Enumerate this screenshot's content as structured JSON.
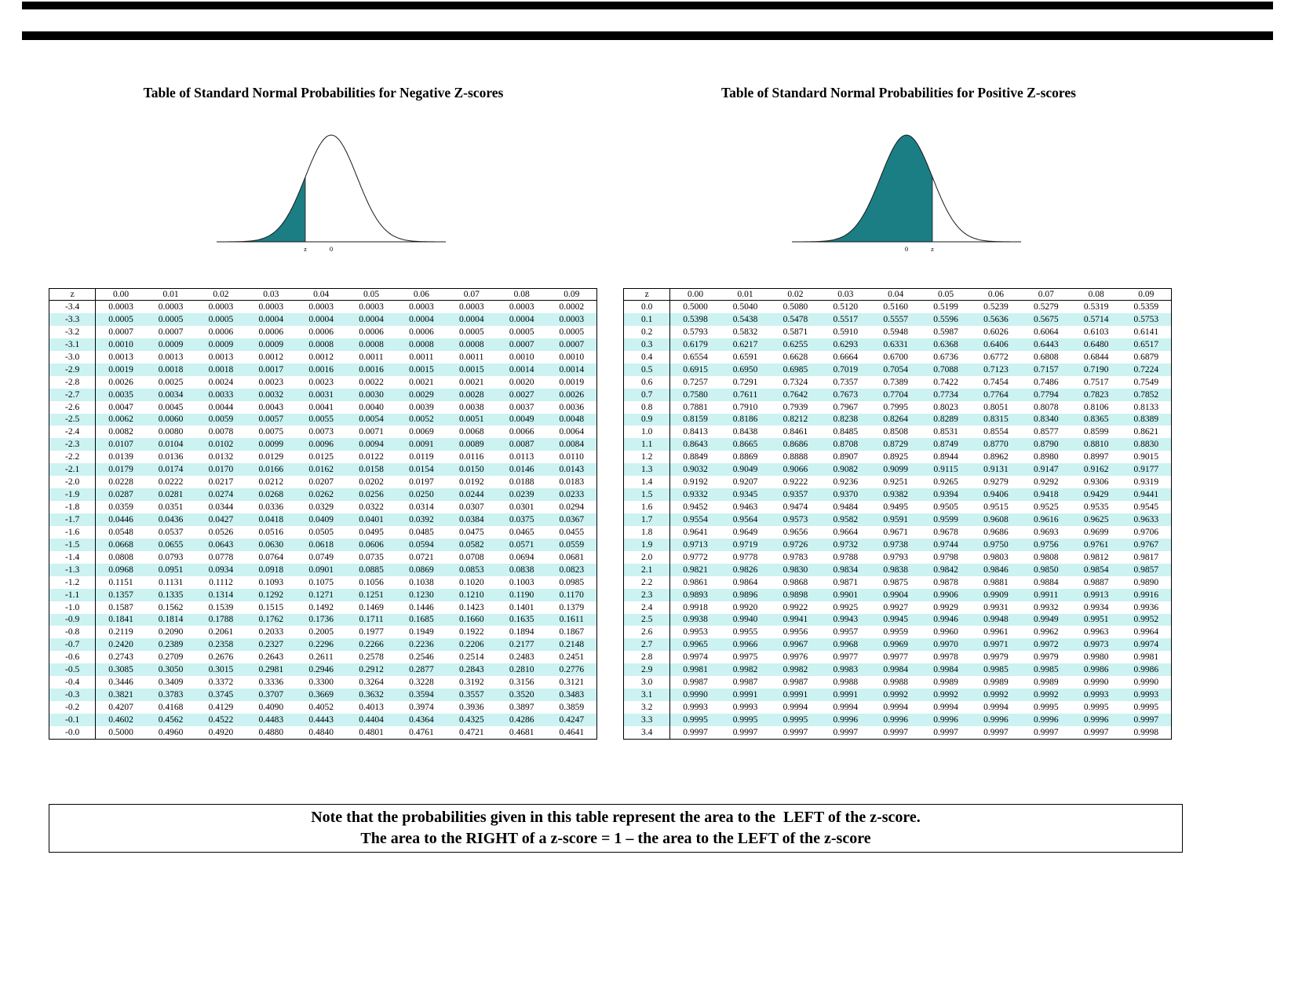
{
  "page": {
    "title_negative": "Table of Standard Normal Probabilities for Negative Z-scores",
    "title_positive": "Table of Standard Normal Probabilities for Positive Z-scores",
    "note_line1": "Note that the probabilities given in this table represent the area to the  LEFT of the z-score.",
    "note_line2": "The area to the RIGHT of a z-score = 1 – the area to the LEFT of the z-score",
    "colors": {
      "shade": "#1b7e85",
      "row_alt": "#ccf2f2",
      "bar": "#000000"
    }
  },
  "charts": {
    "negative": {
      "type": "area",
      "description": "standard normal curve, left tail shaded to z",
      "shadeTo": -1,
      "labels": [
        {
          "z": -1,
          "t": "z"
        },
        {
          "z": 0,
          "t": "0"
        }
      ]
    },
    "positive": {
      "type": "area",
      "description": "standard normal curve, area shaded from left up to z",
      "shadeTo": 1,
      "labels": [
        {
          "z": 0,
          "t": "0"
        },
        {
          "z": 1,
          "t": "z"
        }
      ]
    }
  },
  "tables": {
    "negative": {
      "header": [
        "z",
        "0.00",
        "0.01",
        "0.02",
        "0.03",
        "0.04",
        "0.05",
        "0.06",
        "0.07",
        "0.08",
        "0.09"
      ],
      "rows": [
        [
          "-3.4",
          "0.0003",
          "0.0003",
          "0.0003",
          "0.0003",
          "0.0003",
          "0.0003",
          "0.0003",
          "0.0003",
          "0.0003",
          "0.0002"
        ],
        [
          "-3.3",
          "0.0005",
          "0.0005",
          "0.0005",
          "0.0004",
          "0.0004",
          "0.0004",
          "0.0004",
          "0.0004",
          "0.0004",
          "0.0003"
        ],
        [
          "-3.2",
          "0.0007",
          "0.0007",
          "0.0006",
          "0.0006",
          "0.0006",
          "0.0006",
          "0.0006",
          "0.0005",
          "0.0005",
          "0.0005"
        ],
        [
          "-3.1",
          "0.0010",
          "0.0009",
          "0.0009",
          "0.0009",
          "0.0008",
          "0.0008",
          "0.0008",
          "0.0008",
          "0.0007",
          "0.0007"
        ],
        [
          "-3.0",
          "0.0013",
          "0.0013",
          "0.0013",
          "0.0012",
          "0.0012",
          "0.0011",
          "0.0011",
          "0.0011",
          "0.0010",
          "0.0010"
        ],
        [
          "-2.9",
          "0.0019",
          "0.0018",
          "0.0018",
          "0.0017",
          "0.0016",
          "0.0016",
          "0.0015",
          "0.0015",
          "0.0014",
          "0.0014"
        ],
        [
          "-2.8",
          "0.0026",
          "0.0025",
          "0.0024",
          "0.0023",
          "0.0023",
          "0.0022",
          "0.0021",
          "0.0021",
          "0.0020",
          "0.0019"
        ],
        [
          "-2.7",
          "0.0035",
          "0.0034",
          "0.0033",
          "0.0032",
          "0.0031",
          "0.0030",
          "0.0029",
          "0.0028",
          "0.0027",
          "0.0026"
        ],
        [
          "-2.6",
          "0.0047",
          "0.0045",
          "0.0044",
          "0.0043",
          "0.0041",
          "0.0040",
          "0.0039",
          "0.0038",
          "0.0037",
          "0.0036"
        ],
        [
          "-2.5",
          "0.0062",
          "0.0060",
          "0.0059",
          "0.0057",
          "0.0055",
          "0.0054",
          "0.0052",
          "0.0051",
          "0.0049",
          "0.0048"
        ],
        [
          "-2.4",
          "0.0082",
          "0.0080",
          "0.0078",
          "0.0075",
          "0.0073",
          "0.0071",
          "0.0069",
          "0.0068",
          "0.0066",
          "0.0064"
        ],
        [
          "-2.3",
          "0.0107",
          "0.0104",
          "0.0102",
          "0.0099",
          "0.0096",
          "0.0094",
          "0.0091",
          "0.0089",
          "0.0087",
          "0.0084"
        ],
        [
          "-2.2",
          "0.0139",
          "0.0136",
          "0.0132",
          "0.0129",
          "0.0125",
          "0.0122",
          "0.0119",
          "0.0116",
          "0.0113",
          "0.0110"
        ],
        [
          "-2.1",
          "0.0179",
          "0.0174",
          "0.0170",
          "0.0166",
          "0.0162",
          "0.0158",
          "0.0154",
          "0.0150",
          "0.0146",
          "0.0143"
        ],
        [
          "-2.0",
          "0.0228",
          "0.0222",
          "0.0217",
          "0.0212",
          "0.0207",
          "0.0202",
          "0.0197",
          "0.0192",
          "0.0188",
          "0.0183"
        ],
        [
          "-1.9",
          "0.0287",
          "0.0281",
          "0.0274",
          "0.0268",
          "0.0262",
          "0.0256",
          "0.0250",
          "0.0244",
          "0.0239",
          "0.0233"
        ],
        [
          "-1.8",
          "0.0359",
          "0.0351",
          "0.0344",
          "0.0336",
          "0.0329",
          "0.0322",
          "0.0314",
          "0.0307",
          "0.0301",
          "0.0294"
        ],
        [
          "-1.7",
          "0.0446",
          "0.0436",
          "0.0427",
          "0.0418",
          "0.0409",
          "0.0401",
          "0.0392",
          "0.0384",
          "0.0375",
          "0.0367"
        ],
        [
          "-1.6",
          "0.0548",
          "0.0537",
          "0.0526",
          "0.0516",
          "0.0505",
          "0.0495",
          "0.0485",
          "0.0475",
          "0.0465",
          "0.0455"
        ],
        [
          "-1.5",
          "0.0668",
          "0.0655",
          "0.0643",
          "0.0630",
          "0.0618",
          "0.0606",
          "0.0594",
          "0.0582",
          "0.0571",
          "0.0559"
        ],
        [
          "-1.4",
          "0.0808",
          "0.0793",
          "0.0778",
          "0.0764",
          "0.0749",
          "0.0735",
          "0.0721",
          "0.0708",
          "0.0694",
          "0.0681"
        ],
        [
          "-1.3",
          "0.0968",
          "0.0951",
          "0.0934",
          "0.0918",
          "0.0901",
          "0.0885",
          "0.0869",
          "0.0853",
          "0.0838",
          "0.0823"
        ],
        [
          "-1.2",
          "0.1151",
          "0.1131",
          "0.1112",
          "0.1093",
          "0.1075",
          "0.1056",
          "0.1038",
          "0.1020",
          "0.1003",
          "0.0985"
        ],
        [
          "-1.1",
          "0.1357",
          "0.1335",
          "0.1314",
          "0.1292",
          "0.1271",
          "0.1251",
          "0.1230",
          "0.1210",
          "0.1190",
          "0.1170"
        ],
        [
          "-1.0",
          "0.1587",
          "0.1562",
          "0.1539",
          "0.1515",
          "0.1492",
          "0.1469",
          "0.1446",
          "0.1423",
          "0.1401",
          "0.1379"
        ],
        [
          "-0.9",
          "0.1841",
          "0.1814",
          "0.1788",
          "0.1762",
          "0.1736",
          "0.1711",
          "0.1685",
          "0.1660",
          "0.1635",
          "0.1611"
        ],
        [
          "-0.8",
          "0.2119",
          "0.2090",
          "0.2061",
          "0.2033",
          "0.2005",
          "0.1977",
          "0.1949",
          "0.1922",
          "0.1894",
          "0.1867"
        ],
        [
          "-0.7",
          "0.2420",
          "0.2389",
          "0.2358",
          "0.2327",
          "0.2296",
          "0.2266",
          "0.2236",
          "0.2206",
          "0.2177",
          "0.2148"
        ],
        [
          "-0.6",
          "0.2743",
          "0.2709",
          "0.2676",
          "0.2643",
          "0.2611",
          "0.2578",
          "0.2546",
          "0.2514",
          "0.2483",
          "0.2451"
        ],
        [
          "-0.5",
          "0.3085",
          "0.3050",
          "0.3015",
          "0.2981",
          "0.2946",
          "0.2912",
          "0.2877",
          "0.2843",
          "0.2810",
          "0.2776"
        ],
        [
          "-0.4",
          "0.3446",
          "0.3409",
          "0.3372",
          "0.3336",
          "0.3300",
          "0.3264",
          "0.3228",
          "0.3192",
          "0.3156",
          "0.3121"
        ],
        [
          "-0.3",
          "0.3821",
          "0.3783",
          "0.3745",
          "0.3707",
          "0.3669",
          "0.3632",
          "0.3594",
          "0.3557",
          "0.3520",
          "0.3483"
        ],
        [
          "-0.2",
          "0.4207",
          "0.4168",
          "0.4129",
          "0.4090",
          "0.4052",
          "0.4013",
          "0.3974",
          "0.3936",
          "0.3897",
          "0.3859"
        ],
        [
          "-0.1",
          "0.4602",
          "0.4562",
          "0.4522",
          "0.4483",
          "0.4443",
          "0.4404",
          "0.4364",
          "0.4325",
          "0.4286",
          "0.4247"
        ],
        [
          "-0.0",
          "0.5000",
          "0.4960",
          "0.4920",
          "0.4880",
          "0.4840",
          "0.4801",
          "0.4761",
          "0.4721",
          "0.4681",
          "0.4641"
        ]
      ]
    },
    "positive": {
      "header": [
        "z",
        "0.00",
        "0.01",
        "0.02",
        "0.03",
        "0.04",
        "0.05",
        "0.06",
        "0.07",
        "0.08",
        "0.09"
      ],
      "rows": [
        [
          "0.0",
          "0.5000",
          "0.5040",
          "0.5080",
          "0.5120",
          "0.5160",
          "0.5199",
          "0.5239",
          "0.5279",
          "0.5319",
          "0.5359"
        ],
        [
          "0.1",
          "0.5398",
          "0.5438",
          "0.5478",
          "0.5517",
          "0.5557",
          "0.5596",
          "0.5636",
          "0.5675",
          "0.5714",
          "0.5753"
        ],
        [
          "0.2",
          "0.5793",
          "0.5832",
          "0.5871",
          "0.5910",
          "0.5948",
          "0.5987",
          "0.6026",
          "0.6064",
          "0.6103",
          "0.6141"
        ],
        [
          "0.3",
          "0.6179",
          "0.6217",
          "0.6255",
          "0.6293",
          "0.6331",
          "0.6368",
          "0.6406",
          "0.6443",
          "0.6480",
          "0.6517"
        ],
        [
          "0.4",
          "0.6554",
          "0.6591",
          "0.6628",
          "0.6664",
          "0.6700",
          "0.6736",
          "0.6772",
          "0.6808",
          "0.6844",
          "0.6879"
        ],
        [
          "0.5",
          "0.6915",
          "0.6950",
          "0.6985",
          "0.7019",
          "0.7054",
          "0.7088",
          "0.7123",
          "0.7157",
          "0.7190",
          "0.7224"
        ],
        [
          "0.6",
          "0.7257",
          "0.7291",
          "0.7324",
          "0.7357",
          "0.7389",
          "0.7422",
          "0.7454",
          "0.7486",
          "0.7517",
          "0.7549"
        ],
        [
          "0.7",
          "0.7580",
          "0.7611",
          "0.7642",
          "0.7673",
          "0.7704",
          "0.7734",
          "0.7764",
          "0.7794",
          "0.7823",
          "0.7852"
        ],
        [
          "0.8",
          "0.7881",
          "0.7910",
          "0.7939",
          "0.7967",
          "0.7995",
          "0.8023",
          "0.8051",
          "0.8078",
          "0.8106",
          "0.8133"
        ],
        [
          "0.9",
          "0.8159",
          "0.8186",
          "0.8212",
          "0.8238",
          "0.8264",
          "0.8289",
          "0.8315",
          "0.8340",
          "0.8365",
          "0.8389"
        ],
        [
          "1.0",
          "0.8413",
          "0.8438",
          "0.8461",
          "0.8485",
          "0.8508",
          "0.8531",
          "0.8554",
          "0.8577",
          "0.8599",
          "0.8621"
        ],
        [
          "1.1",
          "0.8643",
          "0.8665",
          "0.8686",
          "0.8708",
          "0.8729",
          "0.8749",
          "0.8770",
          "0.8790",
          "0.8810",
          "0.8830"
        ],
        [
          "1.2",
          "0.8849",
          "0.8869",
          "0.8888",
          "0.8907",
          "0.8925",
          "0.8944",
          "0.8962",
          "0.8980",
          "0.8997",
          "0.9015"
        ],
        [
          "1.3",
          "0.9032",
          "0.9049",
          "0.9066",
          "0.9082",
          "0.9099",
          "0.9115",
          "0.9131",
          "0.9147",
          "0.9162",
          "0.9177"
        ],
        [
          "1.4",
          "0.9192",
          "0.9207",
          "0.9222",
          "0.9236",
          "0.9251",
          "0.9265",
          "0.9279",
          "0.9292",
          "0.9306",
          "0.9319"
        ],
        [
          "1.5",
          "0.9332",
          "0.9345",
          "0.9357",
          "0.9370",
          "0.9382",
          "0.9394",
          "0.9406",
          "0.9418",
          "0.9429",
          "0.9441"
        ],
        [
          "1.6",
          "0.9452",
          "0.9463",
          "0.9474",
          "0.9484",
          "0.9495",
          "0.9505",
          "0.9515",
          "0.9525",
          "0.9535",
          "0.9545"
        ],
        [
          "1.7",
          "0.9554",
          "0.9564",
          "0.9573",
          "0.9582",
          "0.9591",
          "0.9599",
          "0.9608",
          "0.9616",
          "0.9625",
          "0.9633"
        ],
        [
          "1.8",
          "0.9641",
          "0.9649",
          "0.9656",
          "0.9664",
          "0.9671",
          "0.9678",
          "0.9686",
          "0.9693",
          "0.9699",
          "0.9706"
        ],
        [
          "1.9",
          "0.9713",
          "0.9719",
          "0.9726",
          "0.9732",
          "0.9738",
          "0.9744",
          "0.9750",
          "0.9756",
          "0.9761",
          "0.9767"
        ],
        [
          "2.0",
          "0.9772",
          "0.9778",
          "0.9783",
          "0.9788",
          "0.9793",
          "0.9798",
          "0.9803",
          "0.9808",
          "0.9812",
          "0.9817"
        ],
        [
          "2.1",
          "0.9821",
          "0.9826",
          "0.9830",
          "0.9834",
          "0.9838",
          "0.9842",
          "0.9846",
          "0.9850",
          "0.9854",
          "0.9857"
        ],
        [
          "2.2",
          "0.9861",
          "0.9864",
          "0.9868",
          "0.9871",
          "0.9875",
          "0.9878",
          "0.9881",
          "0.9884",
          "0.9887",
          "0.9890"
        ],
        [
          "2.3",
          "0.9893",
          "0.9896",
          "0.9898",
          "0.9901",
          "0.9904",
          "0.9906",
          "0.9909",
          "0.9911",
          "0.9913",
          "0.9916"
        ],
        [
          "2.4",
          "0.9918",
          "0.9920",
          "0.9922",
          "0.9925",
          "0.9927",
          "0.9929",
          "0.9931",
          "0.9932",
          "0.9934",
          "0.9936"
        ],
        [
          "2.5",
          "0.9938",
          "0.9940",
          "0.9941",
          "0.9943",
          "0.9945",
          "0.9946",
          "0.9948",
          "0.9949",
          "0.9951",
          "0.9952"
        ],
        [
          "2.6",
          "0.9953",
          "0.9955",
          "0.9956",
          "0.9957",
          "0.9959",
          "0.9960",
          "0.9961",
          "0.9962",
          "0.9963",
          "0.9964"
        ],
        [
          "2.7",
          "0.9965",
          "0.9966",
          "0.9967",
          "0.9968",
          "0.9969",
          "0.9970",
          "0.9971",
          "0.9972",
          "0.9973",
          "0.9974"
        ],
        [
          "2.8",
          "0.9974",
          "0.9975",
          "0.9976",
          "0.9977",
          "0.9977",
          "0.9978",
          "0.9979",
          "0.9979",
          "0.9980",
          "0.9981"
        ],
        [
          "2.9",
          "0.9981",
          "0.9982",
          "0.9982",
          "0.9983",
          "0.9984",
          "0.9984",
          "0.9985",
          "0.9985",
          "0.9986",
          "0.9986"
        ],
        [
          "3.0",
          "0.9987",
          "0.9987",
          "0.9987",
          "0.9988",
          "0.9988",
          "0.9989",
          "0.9989",
          "0.9989",
          "0.9990",
          "0.9990"
        ],
        [
          "3.1",
          "0.9990",
          "0.9991",
          "0.9991",
          "0.9991",
          "0.9992",
          "0.9992",
          "0.9992",
          "0.9992",
          "0.9993",
          "0.9993"
        ],
        [
          "3.2",
          "0.9993",
          "0.9993",
          "0.9994",
          "0.9994",
          "0.9994",
          "0.9994",
          "0.9994",
          "0.9995",
          "0.9995",
          "0.9995"
        ],
        [
          "3.3",
          "0.9995",
          "0.9995",
          "0.9995",
          "0.9996",
          "0.9996",
          "0.9996",
          "0.9996",
          "0.9996",
          "0.9996",
          "0.9997"
        ],
        [
          "3.4",
          "0.9997",
          "0.9997",
          "0.9997",
          "0.9997",
          "0.9997",
          "0.9997",
          "0.9997",
          "0.9997",
          "0.9997",
          "0.9998"
        ]
      ]
    }
  }
}
